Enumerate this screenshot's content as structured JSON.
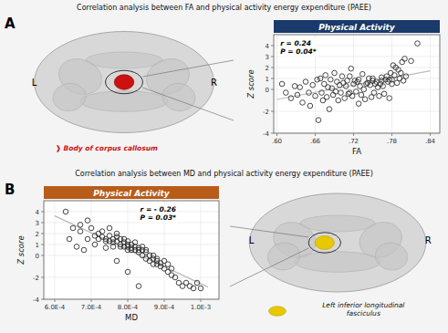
{
  "chart_data": [
    {
      "type": "scatter",
      "subtitle": "Correlation analysis between FA and physical activity energy expenditure (PAEE)",
      "title": "Physical Activity",
      "color": "#1a3a6b",
      "xlabel": "FA",
      "ylabel": "Z score",
      "xlim": [
        0.595,
        0.855
      ],
      "ylim": [
        -4,
        5
      ],
      "xticks": [
        {
          "value": 0.6,
          "label": ".60"
        },
        {
          "value": 0.66,
          "label": ".66"
        },
        {
          "value": 0.72,
          "label": ".72"
        },
        {
          "value": 0.78,
          "label": ".78"
        },
        {
          "value": 0.84,
          "label": ".84"
        }
      ],
      "yticks": [
        -4,
        -2,
        0,
        1,
        2,
        3,
        4
      ],
      "grid": true,
      "annotations": [
        "A",
        "r = 0.24",
        "P = 0.04*",
        "L",
        "R",
        "❱ Body of corpus callosum"
      ],
      "series": [
        {
          "type": "scatter",
          "color": "#333333",
          "x": [
            0.608,
            0.614,
            0.622,
            0.628,
            0.632,
            0.636,
            0.64,
            0.645,
            0.65,
            0.652,
            0.656,
            0.66,
            0.663,
            0.665,
            0.668,
            0.67,
            0.672,
            0.674,
            0.676,
            0.678,
            0.68,
            0.682,
            0.684,
            0.686,
            0.688,
            0.69,
            0.692,
            0.694,
            0.696,
            0.698,
            0.7,
            0.702,
            0.704,
            0.706,
            0.708,
            0.71,
            0.712,
            0.714,
            0.714,
            0.716,
            0.718,
            0.72,
            0.722,
            0.724,
            0.726,
            0.728,
            0.728,
            0.73,
            0.732,
            0.734,
            0.736,
            0.738,
            0.74,
            0.742,
            0.744,
            0.746,
            0.748,
            0.75,
            0.75,
            0.752,
            0.754,
            0.756,
            0.758,
            0.76,
            0.762,
            0.764,
            0.764,
            0.766,
            0.768,
            0.77,
            0.772,
            0.774,
            0.776,
            0.776,
            0.778,
            0.78,
            0.78,
            0.782,
            0.784,
            0.786,
            0.788,
            0.79,
            0.792,
            0.794,
            0.796,
            0.798,
            0.8,
            0.802,
            0.81,
            0.82
          ],
          "values": [
            0.5,
            -0.3,
            -0.8,
            0.3,
            -0.5,
            0.2,
            -1.2,
            0.7,
            -0.3,
            -1.5,
            0.4,
            -0.6,
            0.9,
            -2.8,
            1.0,
            -0.3,
            -1.0,
            0.5,
            1.3,
            -0.7,
            0.2,
            -1.8,
            0.9,
            0.1,
            -0.5,
            1.5,
            -0.2,
            0.7,
            -1.0,
            0.4,
            -0.3,
            1.2,
            0.6,
            -0.8,
            0.3,
            0.8,
            -0.4,
            1.2,
            -0.3,
            1.9,
            -0.6,
            0.5,
            0.8,
            -0.2,
            0.7,
            -1.3,
            0.9,
            0.3,
            -0.5,
            1.4,
            0.0,
            -0.9,
            0.5,
            0.6,
            1.0,
            0.4,
            -0.7,
            1.0,
            0.8,
            -0.3,
            0.5,
            0.7,
            0.2,
            -0.6,
            0.5,
            1.1,
            0.8,
            0.3,
            -0.4,
            0.9,
            1.2,
            0.7,
            0.9,
            -0.8,
            1.5,
            0.9,
            0.5,
            2.2,
            1.3,
            2.0,
            0.6,
            1.8,
            1.0,
            1.5,
            2.5,
            0.8,
            2.8,
            1.2,
            2.6,
            4.2
          ]
        },
        {
          "type": "line",
          "color": "#bbbbbb",
          "x": [
            0.6,
            0.84
          ],
          "values": [
            -0.9146,
            1.6906
          ]
        }
      ]
    },
    {
      "type": "scatter",
      "subtitle": "Correlation analysis between MD and physical activity energy expenditure (PAEE)",
      "title": "Physical Activity",
      "color": "#b85c1a",
      "xlabel": "MD",
      "ylabel": "Z score",
      "xlim": [
        0.00057,
        0.00105
      ],
      "ylim": [
        -4,
        5
      ],
      "xticks": [
        {
          "value": 0.0006,
          "label": "6.0E-4"
        },
        {
          "value": 0.0007,
          "label": "7.0E-4"
        },
        {
          "value": 0.0008,
          "label": "8.0E-4"
        },
        {
          "value": 0.0009,
          "label": "9.0E-4"
        },
        {
          "value": 0.001,
          "label": "1.0E-3"
        }
      ],
      "yticks": [
        -4,
        -2,
        0,
        1,
        2,
        3,
        4
      ],
      "grid": true,
      "annotations": [
        "B",
        "r = - 0.26",
        "P = 0.03*",
        "L",
        "R",
        "Left inferior longitudinal\nfasciculus"
      ],
      "series": [
        {
          "type": "scatter",
          "color": "#333333",
          "x": [
            0.00063,
            0.00065,
            0.00067,
            0.00067,
            0.00069,
            0.00069,
            0.0007,
            0.00071,
            0.00072,
            0.00072,
            0.00073,
            0.00073,
            0.00074,
            0.00074,
            0.00075,
            0.00075,
            0.00075,
            0.00076,
            0.00076,
            0.00076,
            0.00077,
            0.00077,
            0.00077,
            0.00078,
            0.00078,
            0.00078,
            0.00079,
            0.00079,
            0.00079,
            0.0008,
            0.0008,
            0.0008,
            0.0008,
            0.00081,
            0.00081,
            0.00081,
            0.00082,
            0.00082,
            0.00082,
            0.00083,
            0.00083,
            0.00083,
            0.00084,
            0.00084,
            0.00084,
            0.00085,
            0.00085,
            0.00085,
            0.00086,
            0.00086,
            0.00087,
            0.00087,
            0.00087,
            0.00088,
            0.00088,
            0.00088,
            0.00089,
            0.00089,
            0.0009,
            0.0009,
            0.00091,
            0.00091,
            0.00092,
            0.00092,
            0.00093,
            0.00094,
            0.00095,
            0.00096,
            0.00097,
            0.00098,
            0.00099,
            0.001,
            0.00064,
            0.00066,
            0.00068,
            0.00071,
            0.00074,
            0.00077,
            0.0008,
            0.00083
          ],
          "values": [
            4.0,
            2.5,
            2.8,
            2.2,
            3.2,
            1.5,
            2.5,
            1.8,
            2.0,
            1.5,
            2.2,
            1.7,
            1.3,
            1.5,
            1.8,
            1.3,
            2.5,
            1.5,
            1.2,
            0.8,
            1.7,
            1.3,
            2.0,
            1.5,
            1.0,
            0.8,
            1.2,
            0.8,
            1.5,
            1.0,
            0.8,
            0.5,
            1.3,
            0.7,
            0.5,
            1.0,
            0.5,
            0.8,
            1.2,
            0.7,
            0.5,
            0.3,
            0.5,
            0.0,
            0.8,
            0.3,
            0.5,
            -0.3,
            0.0,
            -0.5,
            -0.3,
            0.0,
            -0.8,
            -0.5,
            -0.8,
            -0.3,
            -1.0,
            -0.7,
            -1.2,
            -0.5,
            -1.5,
            -0.8,
            -1.8,
            -1.2,
            -2.0,
            -2.5,
            -2.8,
            -2.5,
            -2.8,
            -3.0,
            -2.5,
            -3.0,
            1.5,
            0.8,
            0.5,
            1.0,
            0.7,
            -0.5,
            -1.5,
            -2.8
          ]
        },
        {
          "type": "line",
          "color": "#bbbbbb",
          "x": [
            0.0006,
            0.00102
          ],
          "values": [
            3.6132,
            -2.885
          ]
        }
      ]
    }
  ]
}
